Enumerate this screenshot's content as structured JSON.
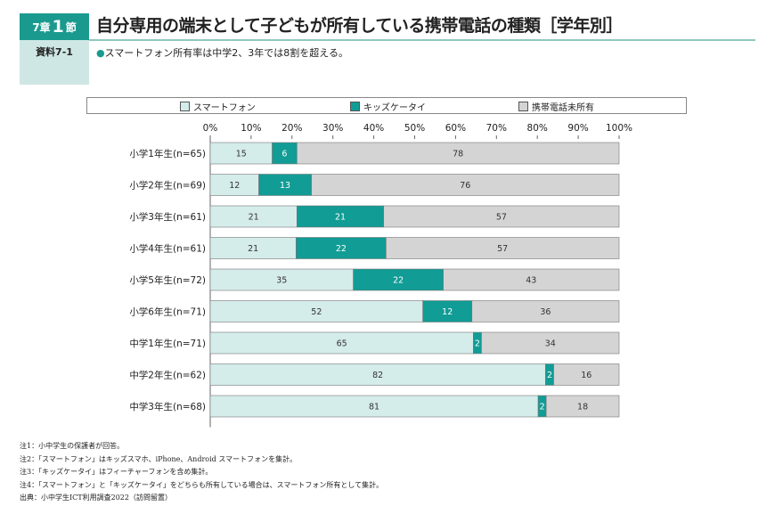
{
  "header": {
    "chapter": "7章",
    "section": "1",
    "section_suffix": "節",
    "reference": "資料7-1",
    "title": "自分専用の端末として子どもが所有している携帯電話の種類［学年別］",
    "subtitle": "スマートフォン所有率は中学2、3年では8割を超える。"
  },
  "colors": {
    "header": "#1a9a8f",
    "smartphone": "#d4ecea",
    "kids": "#119c95",
    "none": "#d4d4d4"
  },
  "chart_data": {
    "type": "bar",
    "orientation": "horizontal",
    "stacked": true,
    "xlim": [
      0,
      100
    ],
    "x_ticks": [
      "0%",
      "10%",
      "20%",
      "30%",
      "40%",
      "50%",
      "60%",
      "70%",
      "80%",
      "90%",
      "100%"
    ],
    "legend_position": "top",
    "categories": [
      "小学1年生(n=65)",
      "小学2年生(n=69)",
      "小学3年生(n=61)",
      "小学4年生(n=61)",
      "小学5年生(n=72)",
      "小学6年生(n=71)",
      "中学1年生(n=71)",
      "中学2年生(n=62)",
      "中学3年生(n=68)"
    ],
    "series": [
      {
        "name": "スマートフォン",
        "values": [
          15,
          12,
          21,
          21,
          35,
          52,
          65,
          82,
          81
        ]
      },
      {
        "name": "キッズケータイ",
        "values": [
          6,
          13,
          21,
          22,
          22,
          12,
          2,
          2,
          2
        ]
      },
      {
        "name": "携帯電話未所有",
        "values": [
          78,
          76,
          57,
          57,
          43,
          36,
          34,
          16,
          18
        ]
      }
    ]
  },
  "notes": [
    "注1：小中学生の保護者が回答。",
    "注2：「スマートフォン」はキッズスマホ、iPhone、Android スマートフォンを集計。",
    "注3：「キッズケータイ」はフィーチャーフォンを含め集計。",
    "注4：「スマートフォン」と「キッズケータイ」をどちらも所有している場合は、スマートフォン所有として集計。",
    "出典：小中学生ICT利用調査2022（訪問留置）"
  ]
}
